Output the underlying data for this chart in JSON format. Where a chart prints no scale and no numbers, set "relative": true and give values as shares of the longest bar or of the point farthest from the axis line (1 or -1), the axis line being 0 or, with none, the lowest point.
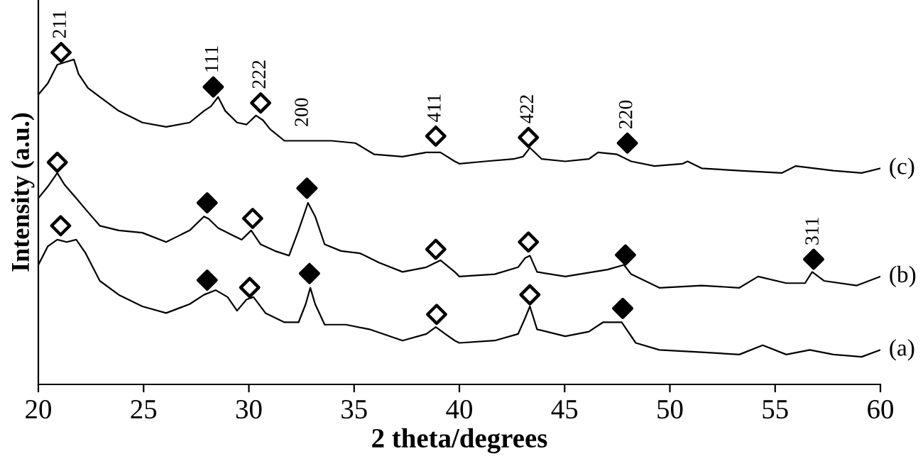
{
  "chart_data": {
    "type": "line",
    "relative": true,
    "xlabel": "2 theta/degrees",
    "ylabel": "Intensity (a.u.)",
    "xlim": [
      20,
      60
    ],
    "xticks": [
      20,
      25,
      30,
      35,
      40,
      45,
      50,
      55,
      60
    ],
    "tick_labels": "x",
    "grid": false,
    "marker": "none",
    "line_style": "solid",
    "annotations": [
      {
        "text": "211",
        "x": 21.08,
        "y": 1.0
      },
      {
        "text": "111",
        "x": 28.31,
        "y": 0.896
      },
      {
        "text": "222",
        "x": 30.56,
        "y": 0.848
      },
      {
        "text": "200",
        "x": 32.58,
        "y": 0.734
      },
      {
        "text": "411",
        "x": 38.88,
        "y": 0.748
      },
      {
        "text": "422",
        "x": 43.28,
        "y": 0.744
      },
      {
        "text": "220",
        "x": 47.98,
        "y": 0.727
      },
      {
        "text": "311",
        "x": 56.83,
        "y": 0.377
      }
    ],
    "series": [
      {
        "name": "(c)",
        "color": "#000000",
        "x": [
          20.0,
          20.45,
          20.9,
          21.24,
          21.69,
          21.91,
          22.36,
          22.92,
          23.82,
          24.94,
          26.07,
          27.19,
          27.87,
          28.2,
          28.54,
          28.88,
          29.44,
          29.89,
          30.34,
          30.67,
          31.01,
          31.69,
          32.58,
          33.93,
          35.06,
          35.96,
          37.3,
          38.43,
          39.1,
          39.78,
          40.0,
          41.23,
          42.57,
          43.02,
          43.35,
          43.91,
          45.03,
          46.15,
          46.59,
          47.49,
          48.16,
          49.27,
          50.61,
          50.84,
          51.51,
          53.3,
          55.31,
          55.98,
          57.77,
          59.11,
          60.0
        ],
        "values": [
          0.873,
          0.907,
          0.963,
          0.97,
          0.979,
          0.935,
          0.893,
          0.866,
          0.824,
          0.789,
          0.776,
          0.789,
          0.824,
          0.838,
          0.866,
          0.824,
          0.789,
          0.783,
          0.81,
          0.796,
          0.769,
          0.734,
          0.734,
          0.734,
          0.727,
          0.693,
          0.686,
          0.699,
          0.699,
          0.672,
          0.665,
          0.672,
          0.679,
          0.686,
          0.713,
          0.679,
          0.672,
          0.679,
          0.699,
          0.693,
          0.672,
          0.658,
          0.665,
          0.672,
          0.651,
          0.644,
          0.637,
          0.658,
          0.644,
          0.637,
          0.651
        ]
      },
      {
        "name": "(b)",
        "color": "#000000",
        "x": [
          20.0,
          20.45,
          20.9,
          21.24,
          21.8,
          22.36,
          22.92,
          23.82,
          24.94,
          26.07,
          27.19,
          27.87,
          28.09,
          28.54,
          29.21,
          29.66,
          30.11,
          30.56,
          31.24,
          31.91,
          32.36,
          32.81,
          33.15,
          33.6,
          34.38,
          35.28,
          36.18,
          37.3,
          38.43,
          39.1,
          39.78,
          40.0,
          41.68,
          42.79,
          43.13,
          43.35,
          43.69,
          45.03,
          46.37,
          47.04,
          47.82,
          48.16,
          49.5,
          51.51,
          53.3,
          54.19,
          55.53,
          56.42,
          56.76,
          57.32,
          58.88,
          60.0
        ],
        "values": [
          0.561,
          0.596,
          0.637,
          0.602,
          0.561,
          0.519,
          0.478,
          0.464,
          0.457,
          0.429,
          0.464,
          0.506,
          0.499,
          0.471,
          0.45,
          0.436,
          0.464,
          0.422,
          0.402,
          0.388,
          0.464,
          0.547,
          0.506,
          0.422,
          0.402,
          0.395,
          0.367,
          0.339,
          0.353,
          0.374,
          0.339,
          0.325,
          0.332,
          0.353,
          0.381,
          0.388,
          0.339,
          0.325,
          0.339,
          0.346,
          0.36,
          0.332,
          0.291,
          0.298,
          0.291,
          0.325,
          0.305,
          0.305,
          0.339,
          0.312,
          0.298,
          0.325
        ]
      },
      {
        "name": "(a)",
        "color": "#000000",
        "x": [
          20.0,
          20.45,
          20.9,
          21.35,
          21.8,
          22.25,
          22.92,
          23.82,
          24.94,
          26.07,
          27.19,
          27.87,
          28.43,
          28.99,
          29.44,
          29.89,
          30.22,
          30.79,
          31.69,
          32.36,
          32.7,
          32.92,
          33.15,
          33.6,
          34.61,
          35.73,
          37.3,
          38.43,
          38.88,
          39.33,
          39.78,
          40.0,
          41.68,
          42.79,
          43.13,
          43.35,
          43.69,
          45.03,
          46.15,
          46.82,
          47.71,
          48.38,
          49.5,
          51.51,
          53.3,
          54.41,
          55.53,
          56.65,
          57.77,
          59.11,
          60.0
        ],
        "values": [
          0.36,
          0.416,
          0.436,
          0.429,
          0.436,
          0.395,
          0.312,
          0.27,
          0.235,
          0.215,
          0.242,
          0.27,
          0.284,
          0.263,
          0.222,
          0.256,
          0.263,
          0.215,
          0.187,
          0.187,
          0.242,
          0.291,
          0.242,
          0.18,
          0.18,
          0.166,
          0.132,
          0.152,
          0.173,
          0.152,
          0.132,
          0.125,
          0.132,
          0.152,
          0.201,
          0.235,
          0.166,
          0.145,
          0.159,
          0.187,
          0.187,
          0.125,
          0.104,
          0.097,
          0.09,
          0.118,
          0.09,
          0.104,
          0.09,
          0.083,
          0.104
        ]
      },
      {
        "type": "scatter",
        "marker": "diamond",
        "color": "#ffffff",
        "x": [
          21.08,
          30.56,
          38.88,
          43.28,
          20.9,
          30.18,
          38.88,
          43.28,
          21.06,
          30.04,
          38.92,
          43.35
        ],
        "values": [
          1.0,
          0.848,
          0.748,
          0.744,
          0.669,
          0.5,
          0.407,
          0.429,
          0.478,
          0.292,
          0.211,
          0.27
        ]
      },
      {
        "type": "scatter",
        "marker": "diamond",
        "color": "#000000",
        "x": [
          28.31,
          47.98,
          28.02,
          32.76,
          47.89,
          56.83,
          28.02,
          32.88,
          47.76
        ],
        "values": [
          0.896,
          0.727,
          0.547,
          0.591,
          0.39,
          0.377,
          0.314,
          0.334,
          0.229
        ]
      }
    ]
  }
}
